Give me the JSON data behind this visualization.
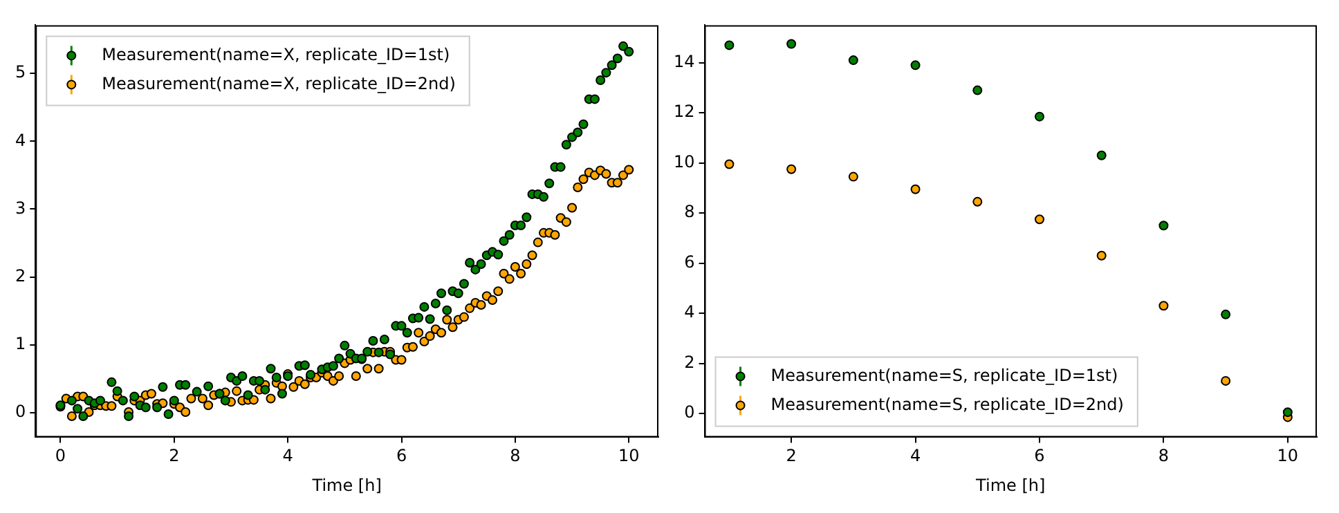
{
  "chart_data": [
    {
      "type": "scatter",
      "xlabel": "Time [h]",
      "xlim": [
        -0.44,
        10.52
      ],
      "ylim": [
        -0.36,
        5.71
      ],
      "xticks": [
        0,
        2,
        4,
        6,
        8,
        10
      ],
      "yticks": [
        0,
        1,
        2,
        3,
        4,
        5
      ],
      "grid": false,
      "legend": "top left",
      "marker": "circle",
      "series": [
        {
          "name": "Measurement(name=X, replicate_ID=1st)",
          "color": "#008000",
          "x": [
            0.0,
            0.2,
            0.3,
            0.4,
            0.5,
            0.6,
            0.7,
            0.9,
            1.0,
            1.1,
            1.2,
            1.3,
            1.4,
            1.5,
            1.7,
            1.8,
            1.9,
            2.0,
            2.1,
            2.2,
            2.4,
            2.6,
            2.8,
            2.9,
            3.0,
            3.1,
            3.2,
            3.3,
            3.4,
            3.5,
            3.6,
            3.7,
            3.8,
            3.9,
            4.0,
            4.2,
            4.3,
            4.4,
            4.6,
            4.7,
            4.8,
            4.9,
            5.0,
            5.1,
            5.2,
            5.3,
            5.4,
            5.5,
            5.6,
            5.7,
            5.8,
            5.9,
            6.0,
            6.1,
            6.2,
            6.3,
            6.4,
            6.5,
            6.6,
            6.7,
            6.8,
            6.9,
            7.0,
            7.1,
            7.2,
            7.3,
            7.4,
            7.5,
            7.6,
            7.7,
            7.8,
            7.9,
            8.0,
            8.1,
            8.2,
            8.3,
            8.4,
            8.5,
            8.6,
            8.7,
            8.8,
            8.9,
            9.0,
            9.1,
            9.2,
            9.3,
            9.4,
            9.5,
            9.6,
            9.7,
            9.8,
            9.9,
            10.0
          ],
          "values": [
            0.11,
            0.18,
            0.06,
            -0.05,
            0.18,
            0.14,
            0.18,
            0.45,
            0.32,
            0.18,
            -0.05,
            0.24,
            0.11,
            0.08,
            0.08,
            0.38,
            -0.02,
            0.18,
            0.41,
            0.41,
            0.31,
            0.39,
            0.28,
            0.18,
            0.52,
            0.47,
            0.54,
            0.26,
            0.47,
            0.47,
            0.34,
            0.65,
            0.52,
            0.28,
            0.54,
            0.69,
            0.7,
            0.56,
            0.64,
            0.67,
            0.69,
            0.8,
            0.99,
            0.87,
            0.8,
            0.8,
            0.9,
            1.06,
            0.89,
            1.08,
            0.86,
            1.28,
            1.28,
            1.18,
            1.39,
            1.4,
            1.56,
            1.38,
            1.61,
            1.76,
            1.51,
            1.79,
            1.76,
            1.9,
            2.21,
            2.11,
            2.19,
            2.32,
            2.37,
            2.33,
            2.53,
            2.62,
            2.76,
            2.76,
            2.88,
            3.22,
            3.22,
            3.18,
            3.38,
            3.62,
            3.62,
            3.95,
            4.06,
            4.13,
            4.25,
            4.62,
            4.62,
            4.9,
            5.01,
            5.12,
            5.22,
            5.4,
            5.32
          ]
        },
        {
          "name": "Measurement(name=X, replicate_ID=2nd)",
          "color": "#ffa500",
          "x": [
            0.0,
            0.1,
            0.2,
            0.3,
            0.4,
            0.5,
            0.6,
            0.7,
            0.8,
            0.9,
            1.0,
            1.2,
            1.3,
            1.4,
            1.5,
            1.6,
            1.7,
            1.8,
            2.0,
            2.1,
            2.2,
            2.3,
            2.5,
            2.6,
            2.7,
            2.8,
            2.9,
            3.0,
            3.1,
            3.2,
            3.3,
            3.4,
            3.5,
            3.6,
            3.7,
            3.8,
            3.9,
            4.0,
            4.1,
            4.2,
            4.3,
            4.4,
            4.5,
            4.6,
            4.7,
            4.8,
            4.9,
            5.0,
            5.1,
            5.2,
            5.3,
            5.4,
            5.5,
            5.6,
            5.7,
            5.8,
            5.9,
            6.0,
            6.1,
            6.2,
            6.3,
            6.4,
            6.5,
            6.6,
            6.7,
            6.8,
            6.9,
            7.0,
            7.1,
            7.2,
            7.3,
            7.4,
            7.5,
            7.6,
            7.7,
            7.8,
            7.9,
            8.0,
            8.1,
            8.2,
            8.3,
            8.4,
            8.5,
            8.6,
            8.7,
            8.8,
            8.9,
            9.0,
            9.1,
            9.2,
            9.3,
            9.4,
            9.5,
            9.6,
            9.7,
            9.8,
            9.9,
            10.0
          ],
          "values": [
            0.09,
            0.21,
            -0.05,
            0.24,
            0.24,
            0.01,
            0.11,
            0.11,
            0.1,
            0.1,
            0.24,
            0.01,
            0.18,
            0.18,
            0.26,
            0.28,
            0.13,
            0.14,
            0.13,
            0.08,
            0.01,
            0.21,
            0.21,
            0.11,
            0.26,
            0.28,
            0.3,
            0.16,
            0.32,
            0.18,
            0.19,
            0.19,
            0.34,
            0.41,
            0.21,
            0.44,
            0.39,
            0.57,
            0.38,
            0.47,
            0.42,
            0.52,
            0.52,
            0.59,
            0.54,
            0.47,
            0.54,
            0.73,
            0.78,
            0.54,
            0.79,
            0.65,
            0.89,
            0.65,
            0.9,
            0.9,
            0.78,
            0.78,
            0.96,
            0.97,
            1.18,
            1.05,
            1.13,
            1.23,
            1.18,
            1.37,
            1.26,
            1.37,
            1.41,
            1.54,
            1.62,
            1.59,
            1.72,
            1.66,
            1.79,
            2.05,
            1.97,
            2.15,
            2.05,
            2.19,
            2.32,
            2.51,
            2.65,
            2.65,
            2.62,
            2.87,
            2.81,
            3.02,
            3.32,
            3.44,
            3.54,
            3.5,
            3.57,
            3.52,
            3.39,
            3.39,
            3.5,
            3.58
          ]
        }
      ]
    },
    {
      "type": "scatter",
      "xlabel": "Time [h]",
      "xlim": [
        0.6,
        10.47
      ],
      "ylim": [
        -0.95,
        15.5
      ],
      "xticks": [
        2,
        4,
        6,
        8,
        10
      ],
      "yticks": [
        0,
        2,
        4,
        6,
        8,
        10,
        12,
        14
      ],
      "grid": false,
      "legend": "bottom left",
      "marker": "circle",
      "series": [
        {
          "name": "Measurement(name=S, replicate_ID=1st)",
          "color": "#008000",
          "x": [
            1,
            2,
            3,
            4,
            5,
            6,
            7,
            8,
            9,
            10
          ],
          "values": [
            14.7,
            14.75,
            14.1,
            13.9,
            12.9,
            11.85,
            10.3,
            7.5,
            3.95,
            0.05
          ]
        },
        {
          "name": "Measurement(name=S, replicate_ID=2nd)",
          "color": "#ffa500",
          "x": [
            1,
            2,
            3,
            4,
            5,
            6,
            7,
            8,
            9,
            10
          ],
          "values": [
            9.95,
            9.75,
            9.45,
            8.95,
            8.45,
            7.75,
            6.3,
            4.3,
            1.3,
            -0.15
          ]
        }
      ]
    }
  ]
}
